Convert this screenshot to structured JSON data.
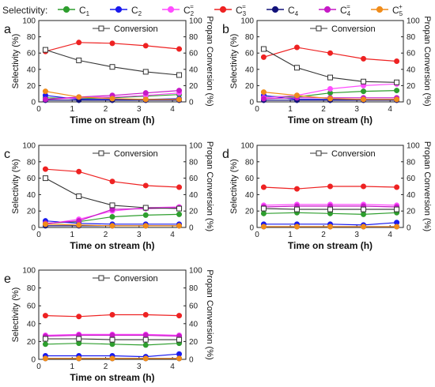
{
  "legend": {
    "prefix": "Selectivity:",
    "items": [
      {
        "label": "C",
        "sub": "1",
        "sup": "",
        "color": "#2e9e2e"
      },
      {
        "label": "C",
        "sub": "2",
        "sup": "",
        "color": "#1a1aee"
      },
      {
        "label": "C",
        "sub": "2",
        "sup": "=",
        "color": "#ff4dff"
      },
      {
        "label": "C",
        "sub": "3",
        "sup": "=",
        "color": "#ee2222"
      },
      {
        "label": "C",
        "sub": "4",
        "sup": "",
        "color": "#12127a"
      },
      {
        "label": "C",
        "sub": "4",
        "sup": "=",
        "color": "#c61ac6"
      },
      {
        "label": "C",
        "sub": "5",
        "sup": "+",
        "color": "#f08c1a"
      }
    ]
  },
  "conversion_color": "#333333",
  "chart_data": [
    {
      "type": "line",
      "panel": "a",
      "x": [
        0.2,
        1.2,
        2.2,
        3.2,
        4.2
      ],
      "xlim": [
        0,
        4.4
      ],
      "xticks": [
        0,
        1,
        2,
        3,
        4
      ],
      "ylim": [
        0,
        100
      ],
      "yticks": [
        0,
        20,
        40,
        60,
        80,
        100
      ],
      "y2lim": [
        0,
        100
      ],
      "y2ticks": [
        0,
        20,
        40,
        60,
        80,
        100
      ],
      "xlabel": "Time on stream (h)",
      "ylabel": "Selectivity (%)",
      "y2label": "Propan Conversion (%)",
      "conversion_label": "Conversion",
      "conversion": [
        64,
        51,
        43,
        37,
        33
      ],
      "series": [
        {
          "key": "C1",
          "values": [
            5,
            4,
            5,
            7,
            9
          ]
        },
        {
          "key": "C2",
          "values": [
            8,
            3,
            3,
            3,
            4
          ]
        },
        {
          "key": "C2=",
          "values": [
            3,
            5,
            6,
            8,
            11
          ]
        },
        {
          "key": "C3=",
          "values": [
            62,
            73,
            72,
            69,
            65
          ]
        },
        {
          "key": "C4",
          "values": [
            2,
            2,
            2,
            2,
            2
          ]
        },
        {
          "key": "C4=",
          "values": [
            3,
            6,
            8,
            11,
            14
          ]
        },
        {
          "key": "C5+",
          "values": [
            13,
            6,
            4,
            3,
            3
          ]
        }
      ]
    },
    {
      "type": "line",
      "panel": "b",
      "x": [
        0.2,
        1.2,
        2.2,
        3.2,
        4.2
      ],
      "xlim": [
        0,
        4.4
      ],
      "xticks": [
        0,
        1,
        2,
        3,
        4
      ],
      "ylim": [
        0,
        100
      ],
      "yticks": [
        0,
        20,
        40,
        60,
        80,
        100
      ],
      "y2lim": [
        0,
        100
      ],
      "y2ticks": [
        0,
        20,
        40,
        60,
        80,
        100
      ],
      "xlabel": "Time on stream (h)",
      "ylabel": "Selectivity (%)",
      "y2label": "Propan Conversion (%)",
      "conversion_label": "Conversion",
      "conversion": [
        65,
        42,
        30,
        25,
        24
      ],
      "series": [
        {
          "key": "C1",
          "values": [
            7,
            6,
            11,
            13,
            14
          ]
        },
        {
          "key": "C2",
          "values": [
            8,
            3,
            3,
            3,
            3
          ]
        },
        {
          "key": "C2=",
          "values": [
            5,
            8,
            16,
            20,
            22
          ]
        },
        {
          "key": "C3=",
          "values": [
            55,
            67,
            60,
            53,
            50
          ]
        },
        {
          "key": "C4",
          "values": [
            2,
            2,
            2,
            2,
            2
          ]
        },
        {
          "key": "C4=",
          "values": [
            4,
            5,
            5,
            5,
            5
          ]
        },
        {
          "key": "C5+",
          "values": [
            12,
            8,
            4,
            3,
            3
          ]
        }
      ]
    },
    {
      "type": "line",
      "panel": "c",
      "x": [
        0.2,
        1.2,
        2.2,
        3.2,
        4.2
      ],
      "xlim": [
        0,
        4.4
      ],
      "xticks": [
        0,
        1,
        2,
        3,
        4
      ],
      "ylim": [
        0,
        100
      ],
      "yticks": [
        0,
        20,
        40,
        60,
        80,
        100
      ],
      "y2lim": [
        0,
        100
      ],
      "y2ticks": [
        0,
        20,
        40,
        60,
        80,
        100
      ],
      "xlabel": "Time on stream (h)",
      "ylabel": "Selectivity (%)",
      "y2label": "Propan Conversion (%)",
      "conversion_label": "Conversion",
      "conversion": [
        60,
        38,
        27,
        24,
        23
      ],
      "series": [
        {
          "key": "C1",
          "values": [
            5,
            7,
            13,
            15,
            16
          ]
        },
        {
          "key": "C2",
          "values": [
            8,
            5,
            4,
            4,
            4
          ]
        },
        {
          "key": "C2=",
          "values": [
            4,
            10,
            20,
            24,
            25
          ]
        },
        {
          "key": "C3=",
          "values": [
            71,
            68,
            56,
            51,
            49
          ]
        },
        {
          "key": "C4",
          "values": [
            2,
            2,
            2,
            2,
            2
          ]
        },
        {
          "key": "C4=",
          "values": [
            5,
            8,
            22,
            23,
            24
          ]
        },
        {
          "key": "C5+",
          "values": [
            4,
            3,
            2,
            2,
            2
          ]
        }
      ]
    },
    {
      "type": "line",
      "panel": "d",
      "x": [
        0.2,
        1.2,
        2.2,
        3.2,
        4.2
      ],
      "xlim": [
        0,
        4.4
      ],
      "xticks": [
        0,
        1,
        2,
        3,
        4
      ],
      "ylim": [
        0,
        100
      ],
      "yticks": [
        0,
        20,
        40,
        60,
        80,
        100
      ],
      "y2lim": [
        0,
        100
      ],
      "y2ticks": [
        0,
        20,
        40,
        60,
        80,
        100
      ],
      "xlabel": "Time on stream (h)",
      "ylabel": "Selectivity (%)",
      "y2label": "Propan Conversion (%)",
      "conversion_label": "Conversion",
      "conversion": [
        23,
        22,
        22,
        22,
        22
      ],
      "series": [
        {
          "key": "C1",
          "values": [
            17,
            18,
            17,
            16,
            18
          ]
        },
        {
          "key": "C2",
          "values": [
            4,
            4,
            4,
            3,
            6
          ]
        },
        {
          "key": "C2=",
          "values": [
            27,
            28,
            28,
            28,
            27
          ]
        },
        {
          "key": "C3=",
          "values": [
            49,
            47,
            50,
            50,
            49
          ]
        },
        {
          "key": "C4",
          "values": [
            1,
            1,
            1,
            1,
            1
          ]
        },
        {
          "key": "C4=",
          "values": [
            25,
            26,
            26,
            26,
            25
          ]
        },
        {
          "key": "C5+",
          "values": [
            1,
            1,
            1,
            1,
            1
          ]
        }
      ]
    },
    {
      "type": "line",
      "panel": "e",
      "x": [
        0.2,
        1.2,
        2.2,
        3.2,
        4.2
      ],
      "xlim": [
        0,
        4.4
      ],
      "xticks": [
        0,
        1,
        2,
        3,
        4
      ],
      "ylim": [
        0,
        100
      ],
      "yticks": [
        0,
        20,
        40,
        60,
        80,
        100
      ],
      "y2lim": [
        0,
        100
      ],
      "y2ticks": [
        0,
        20,
        40,
        60,
        80,
        100
      ],
      "xlabel": "Time on stream (h)",
      "ylabel": "Selectivity (%)",
      "y2label": "Propan Conversion (%)",
      "conversion_label": "Conversion",
      "conversion": [
        23,
        23,
        22,
        22,
        22
      ],
      "series": [
        {
          "key": "C1",
          "values": [
            17,
            18,
            17,
            16,
            18
          ]
        },
        {
          "key": "C2",
          "values": [
            4,
            4,
            4,
            3,
            6
          ]
        },
        {
          "key": "C2=",
          "values": [
            27,
            28,
            28,
            28,
            27
          ]
        },
        {
          "key": "C3=",
          "values": [
            49,
            48,
            50,
            50,
            49
          ]
        },
        {
          "key": "C4",
          "values": [
            1,
            1,
            1,
            1,
            1
          ]
        },
        {
          "key": "C4=",
          "values": [
            26,
            27,
            27,
            27,
            26
          ]
        },
        {
          "key": "C5+",
          "values": [
            1,
            1,
            1,
            1,
            1
          ]
        }
      ]
    }
  ]
}
